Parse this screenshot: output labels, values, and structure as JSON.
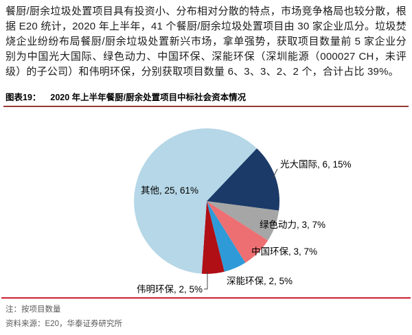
{
  "page": {
    "paragraph": "餐厨/厨余垃圾处置项目具有投资小、分布相对分散的特点，市场竞争格局也较分散，根据 E20 统计，2020 年上半年，41 个餐厨/厨余垃圾处置项目由 30 家企业瓜分。垃圾焚烧企业纷纷布局餐厨/厨余垃圾处置新兴市场，拿单强势，获取项目数量前 5 家企业分别为中国光大国际、绿色动力、中国环保、深能环保（深圳能源（000027 CH，未评级）的子公司）和伟明环保，分别获取项目数量 6、3、3、2、2 个，合计占比 39%。",
    "figure_label": "图表19：",
    "figure_title": "2020 年上半年餐厨/厨余处置项目中标社会资本情况",
    "note": "注：按项目数量",
    "source": "资料来源：E20，华泰证券研究所"
  },
  "colors": {
    "title_rule": "#953735",
    "bottom_rule": "#cb2030",
    "note_text": "#595959",
    "label_text": "#000000",
    "leader_line": "#404040"
  },
  "chart_data": {
    "type": "pie",
    "title": "2020 年上半年餐厨/厨余处置项目中标社会资本情况",
    "unit_note": "按项目数量",
    "start_angle_deg": 43.5,
    "legend_position": "outside-data-labels",
    "label_format": "{name}, {value}, {pct}%",
    "series": [
      {
        "name": "光大国际",
        "value": 6,
        "pct": 15,
        "color": "#1b3a68"
      },
      {
        "name": "绿色动力",
        "value": 3,
        "pct": 7,
        "color": "#a6a6a6"
      },
      {
        "name": "中国环保",
        "value": 3,
        "pct": 7,
        "color": "#ed6f72"
      },
      {
        "name": "深能环保",
        "value": 2,
        "pct": 5,
        "color": "#2e9bd8"
      },
      {
        "name": "伟明环保",
        "value": 2,
        "pct": 5,
        "color": "#b00f16"
      },
      {
        "name": "其他",
        "value": 25,
        "pct": 61,
        "color": "#b5d7e7"
      }
    ]
  }
}
